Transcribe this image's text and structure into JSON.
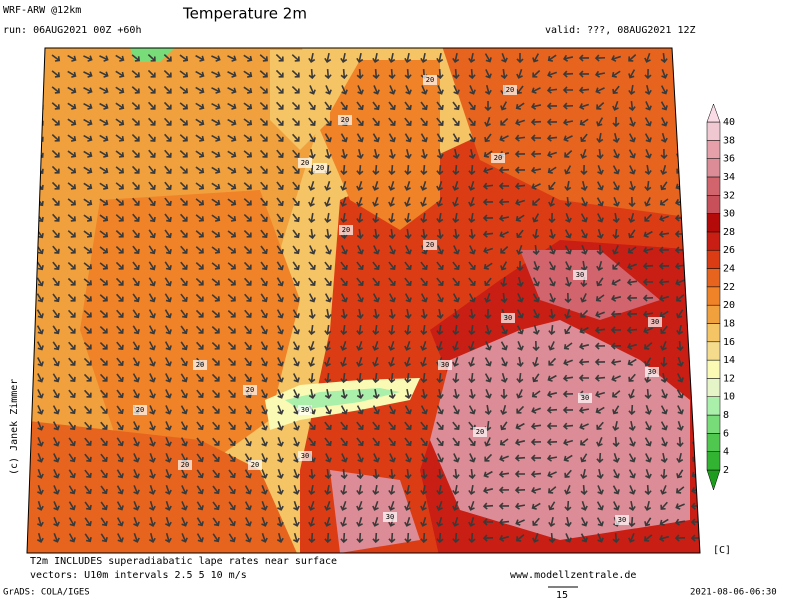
{
  "header": {
    "model": "WRF-ARW @12km",
    "run": "run: 06AUG2021 00Z +60h",
    "title": "Temperature 2m",
    "valid": "valid: ???, 08AUG2021 12Z"
  },
  "map": {
    "copyright": "(c) Janek Zimmer",
    "contour_labels": [
      20,
      20,
      20,
      20,
      20,
      20,
      20,
      20,
      20,
      20,
      20,
      20,
      30,
      30,
      30,
      30,
      30,
      30,
      30,
      30,
      20,
      20,
      30,
      30
    ]
  },
  "colorbar": {
    "unit": "[C]",
    "levels": [
      2,
      4,
      6,
      8,
      10,
      12,
      14,
      16,
      18,
      20,
      22,
      24,
      26,
      28,
      30,
      32,
      34,
      36,
      38,
      40
    ],
    "colors": [
      "#1e9c1e",
      "#32b432",
      "#50c850",
      "#78dc78",
      "#aaf0aa",
      "#e6f5c8",
      "#fafab4",
      "#f5dc8c",
      "#f5c464",
      "#f0a03c",
      "#f08228",
      "#e6641e",
      "#dc3c14",
      "#c81e14",
      "#b40a0a",
      "#c8505a",
      "#d2646e",
      "#dc8c96",
      "#e6a0aa",
      "#f0c8d2",
      "#fadce6"
    ]
  },
  "footer": {
    "note": "T2m INCLUDES superadiabatic lape rates near surface",
    "vectors": "vectors: U10m intervals 2.5 5 10 m/s",
    "website": "www.modellzentrale.de",
    "grads": "GrADS: COLA/IGES",
    "scale": "15",
    "timestamp": "2021-08-06-06:30"
  }
}
